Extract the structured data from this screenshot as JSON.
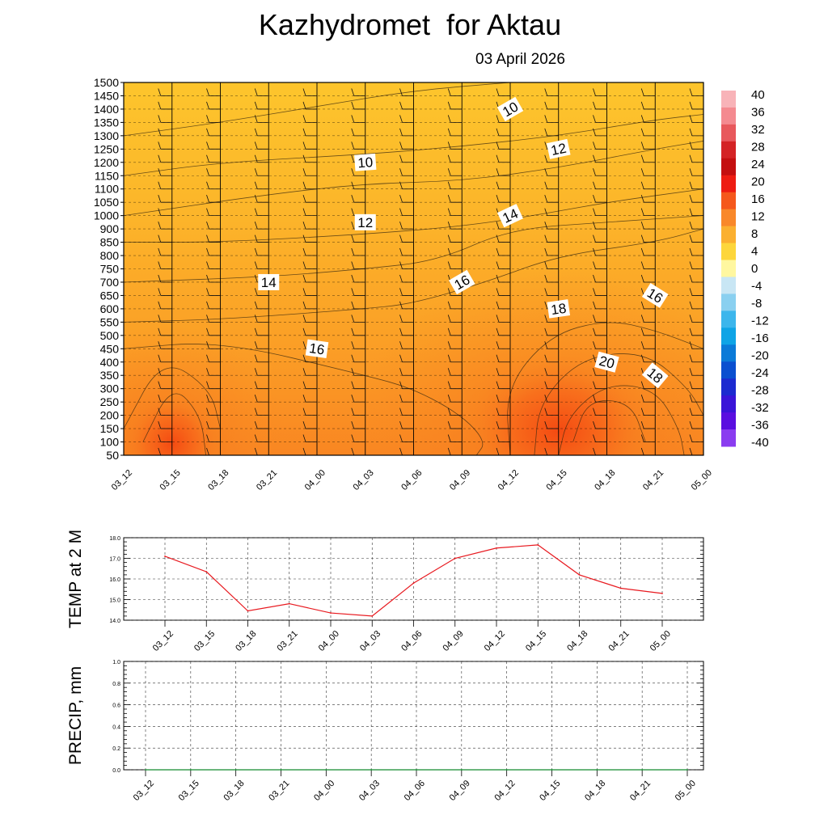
{
  "title": "Kazhydromet  for Aktau",
  "subtitle": "03 April 2026",
  "chart_data": [
    {
      "type": "heatmap",
      "name": "vertical temperature cross-section",
      "x_ticks": [
        "03_12",
        "03_15",
        "03_18",
        "03_21",
        "04_00",
        "04_03",
        "04_06",
        "04_09",
        "04_12",
        "04_15",
        "04_18",
        "04_21",
        "05_00"
      ],
      "y_ticks": [
        50,
        100,
        150,
        200,
        250,
        300,
        350,
        400,
        450,
        500,
        550,
        600,
        650,
        700,
        750,
        800,
        850,
        900,
        1000,
        1050,
        1100,
        1150,
        1200,
        1250,
        1300,
        1350,
        1400,
        1450,
        1500
      ],
      "contour_labels": [
        {
          "text": "10",
          "x": "04_03",
          "y": 1200
        },
        {
          "text": "10",
          "x": "04_12",
          "y": 1400
        },
        {
          "text": "12",
          "x": "04_03",
          "y": 950
        },
        {
          "text": "12",
          "x": "04_15",
          "y": 1250
        },
        {
          "text": "14",
          "x": "03_21",
          "y": 700
        },
        {
          "text": "14",
          "x": "04_12",
          "y": 1000
        },
        {
          "text": "16",
          "x": "04_00",
          "y": 450
        },
        {
          "text": "16",
          "x": "04_09",
          "y": 700
        },
        {
          "text": "16",
          "x": "04_21",
          "y": 650
        },
        {
          "text": "18",
          "x": "04_15",
          "y": 600
        },
        {
          "text": "18",
          "x": "04_21",
          "y": 350
        },
        {
          "text": "20",
          "x": "04_18",
          "y": 400
        }
      ],
      "colorbar": {
        "labels": [
          "40",
          "36",
          "32",
          "28",
          "24",
          "20",
          "16",
          "12",
          "8",
          "4",
          "0",
          "-4",
          "-8",
          "-12",
          "-16",
          "-20",
          "-24",
          "-28",
          "-32",
          "-36",
          "-40"
        ],
        "colors": [
          "#f8b3b8",
          "#f48a90",
          "#e8585c",
          "#d42325",
          "#c40f10",
          "#ee1c12",
          "#f5581c",
          "#f9882a",
          "#fbb030",
          "#fdd63b",
          "#fff7a0",
          "#c8e6f4",
          "#8ad0f0",
          "#3cb6ec",
          "#0ea4e6",
          "#0a7ad8",
          "#0a4fd0",
          "#1c2ad0",
          "#3a14d8",
          "#5a0ee0",
          "#8a3cf0"
        ]
      }
    },
    {
      "type": "line",
      "ylabel": "TEMP at 2 M",
      "ylim": [
        14.0,
        18.0
      ],
      "y_ticks": [
        "14.0",
        "15.0",
        "16.0",
        "17.0",
        "18.0"
      ],
      "categories": [
        "03_12",
        "03_15",
        "03_18",
        "03_21",
        "04_00",
        "04_03",
        "04_06",
        "04_09",
        "04_12",
        "04_15",
        "04_18",
        "04_21",
        "05_00"
      ],
      "values": [
        17.1,
        16.35,
        14.45,
        14.8,
        14.35,
        14.2,
        15.8,
        17.0,
        17.5,
        17.65,
        16.2,
        15.55,
        15.3
      ],
      "color": "#e8191f"
    },
    {
      "type": "line",
      "ylabel": "PRECIP, mm",
      "ylim": [
        0.0,
        1.0
      ],
      "y_ticks": [
        "0.0",
        "0.2",
        "0.4",
        "0.6",
        "0.8",
        "1.0"
      ],
      "categories": [
        "03_12",
        "03_15",
        "03_18",
        "03_21",
        "04_00",
        "04_03",
        "04_06",
        "04_09",
        "04_12",
        "04_15",
        "04_18",
        "04_21",
        "05_00"
      ],
      "values": [
        0,
        0,
        0,
        0,
        0,
        0,
        0,
        0,
        0,
        0,
        0,
        0,
        0
      ],
      "color": "#138a2e"
    }
  ]
}
